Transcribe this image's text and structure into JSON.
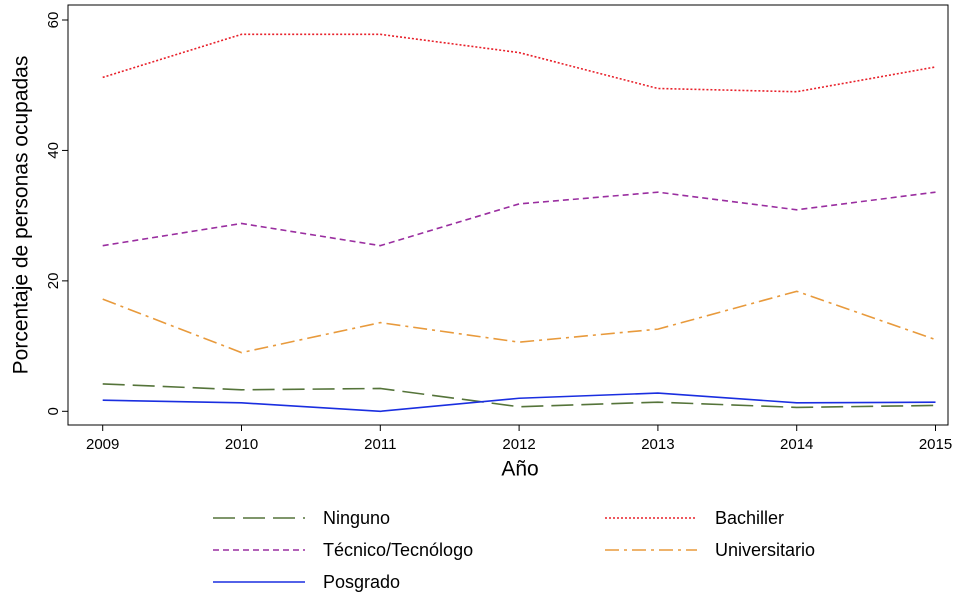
{
  "chart_data": {
    "type": "line",
    "x_label": "Año",
    "y_label": "Porcentaje de personas ocupadas",
    "x": [
      2009,
      2010,
      2011,
      2012,
      2013,
      2014,
      2015
    ],
    "series": [
      {
        "name": "Ninguno",
        "color": "#55743a",
        "dash": "long-dash",
        "values": [
          4.2,
          3.3,
          3.5,
          0.7,
          1.4,
          0.6,
          0.9
        ]
      },
      {
        "name": "Bachiller",
        "color": "#e8202a",
        "dash": "dot",
        "values": [
          51.2,
          57.8,
          57.8,
          55,
          49.5,
          49,
          52.8
        ]
      },
      {
        "name": "Técnico/Tecnólogo",
        "color": "#9a2ea0",
        "dash": "short-dash",
        "values": [
          25.4,
          28.8,
          25.4,
          31.8,
          33.6,
          30.9,
          33.6
        ]
      },
      {
        "name": "Universitario",
        "color": "#e89a3c",
        "dash": "dash-dot",
        "values": [
          17.2,
          9,
          13.6,
          10.6,
          12.6,
          18.4,
          11
        ]
      },
      {
        "name": "Posgrado",
        "color": "#1a2ee0",
        "dash": "solid",
        "values": [
          1.7,
          1.3,
          0,
          2,
          2.8,
          1.3,
          1.4
        ]
      }
    ],
    "xlim": [
      2008.75,
      2015.09
    ],
    "xticks": [
      2009,
      2010,
      2011,
      2012,
      2013,
      2014,
      2015
    ],
    "ylim": [
      -2.1,
      62.3
    ],
    "yticks": [
      0,
      20,
      40,
      60
    ]
  }
}
